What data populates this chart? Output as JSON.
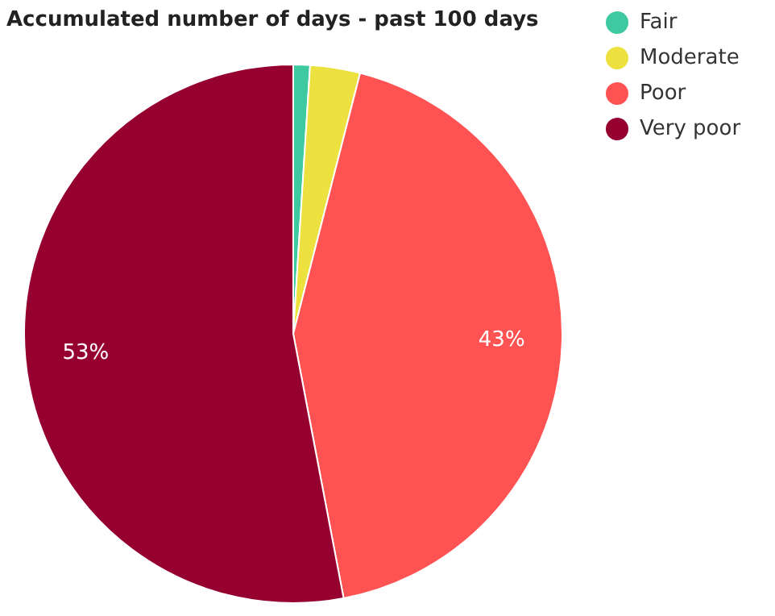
{
  "chart_data": {
    "type": "pie",
    "title": "Accumulated number of days - past 100 days",
    "categories": [
      "Fair",
      "Moderate",
      "Poor",
      "Very poor"
    ],
    "values": [
      1,
      3,
      43,
      53
    ],
    "colors": [
      "#3ec9a0",
      "#ece13e",
      "#ff5252",
      "#960030"
    ],
    "value_labels": [
      null,
      null,
      "43%",
      "53%"
    ],
    "legend": "top right"
  }
}
